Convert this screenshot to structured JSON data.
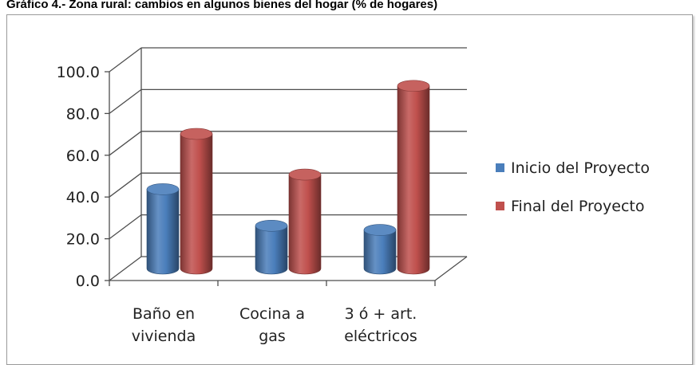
{
  "chart_data": {
    "type": "bar",
    "title": "Gráfico 4.- Zona rural: cambios en algunos bienes del hogar (% de hogares)",
    "categories": [
      [
        "Baño en",
        "vivienda"
      ],
      [
        "Cocina a",
        "gas"
      ],
      [
        "3 ó + art.",
        "eléctricos"
      ]
    ],
    "series": [
      {
        "name": "Inicio del Proyecto",
        "values": [
          38.0,
          20.5,
          18.5
        ],
        "color": "#4a7ebb"
      },
      {
        "name": "Final del Proyecto",
        "values": [
          64.5,
          45.0,
          87.5
        ],
        "color": "#c0504d"
      }
    ],
    "ylim": [
      0,
      100
    ],
    "yticks": [
      "0.0",
      "20.0",
      "40.0",
      "60.0",
      "80.0",
      "100.0"
    ],
    "ytick_values": [
      0,
      20,
      40,
      60,
      80,
      100
    ],
    "grid": true,
    "style": "3d-cylinder",
    "legend_position": "right"
  }
}
